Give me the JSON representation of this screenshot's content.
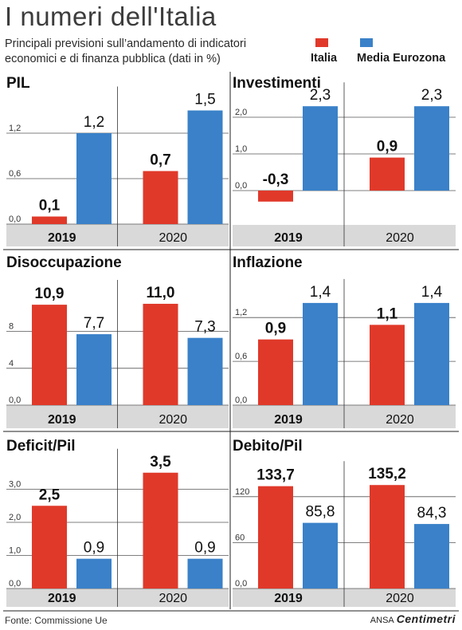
{
  "title": "I numeri dell'Italia",
  "subtitle": "Principali previsioni sull’andamento di indicatori economici e di finanza pubblica (dati in %)",
  "legend": [
    {
      "label": "Italia",
      "color": "#e0392a"
    },
    {
      "label": "Media Eurozona",
      "color": "#3a81c9"
    }
  ],
  "colors": {
    "italia": "#e0392a",
    "eurozona": "#3a81c9",
    "axis_band": "#d9d9d9"
  },
  "chart_data": [
    {
      "type": "bar",
      "title": "PIL",
      "categories": [
        "2019",
        "2020"
      ],
      "series": [
        {
          "name": "Italia",
          "values": [
            0.1,
            0.7
          ]
        },
        {
          "name": "Media Eurozona",
          "values": [
            1.2,
            1.5
          ]
        }
      ],
      "value_labels": [
        [
          "0,1",
          "0,7"
        ],
        [
          "1,2",
          "1,5"
        ]
      ],
      "yticks": [
        0,
        0.6,
        1.2
      ],
      "ytick_labels": [
        "0,0",
        "0,6",
        "1,2"
      ],
      "ylim": [
        0,
        1.5
      ]
    },
    {
      "type": "bar",
      "title": "Investimenti",
      "categories": [
        "2019",
        "2020"
      ],
      "series": [
        {
          "name": "Italia",
          "values": [
            -0.3,
            0.9
          ]
        },
        {
          "name": "Media Eurozona",
          "values": [
            2.3,
            2.3
          ]
        }
      ],
      "value_labels": [
        [
          "-0,3",
          "0,9"
        ],
        [
          "2,3",
          "2,3"
        ]
      ],
      "yticks": [
        0,
        1,
        2
      ],
      "ytick_labels": [
        "0,0",
        "1,0",
        "2,0"
      ],
      "ylim": [
        -0.5,
        2.3
      ]
    },
    {
      "type": "bar",
      "title": "Disoccupazione",
      "categories": [
        "2019",
        "2020"
      ],
      "series": [
        {
          "name": "Italia",
          "values": [
            10.9,
            11.0
          ]
        },
        {
          "name": "Media Eurozona",
          "values": [
            7.7,
            7.3
          ]
        }
      ],
      "value_labels": [
        [
          "10,9",
          "11,0"
        ],
        [
          "7,7",
          "7,3"
        ]
      ],
      "yticks": [
        0,
        4,
        8
      ],
      "ytick_labels": [
        "0,0",
        "4",
        "8"
      ],
      "ylim": [
        0,
        11
      ]
    },
    {
      "type": "bar",
      "title": "Inflazione",
      "categories": [
        "2019",
        "2020"
      ],
      "series": [
        {
          "name": "Italia",
          "values": [
            0.9,
            1.1
          ]
        },
        {
          "name": "Media Eurozona",
          "values": [
            1.4,
            1.4
          ]
        }
      ],
      "value_labels": [
        [
          "0,9",
          "1,1"
        ],
        [
          "1,4",
          "1,4"
        ]
      ],
      "yticks": [
        0,
        0.6,
        1.2
      ],
      "ytick_labels": [
        "0,0",
        "0,6",
        "1,2"
      ],
      "ylim": [
        0,
        1.4
      ]
    },
    {
      "type": "bar",
      "title": "Deficit/Pil",
      "categories": [
        "2019",
        "2020"
      ],
      "series": [
        {
          "name": "Italia",
          "values": [
            2.5,
            3.5
          ]
        },
        {
          "name": "Media Eurozona",
          "values": [
            0.9,
            0.9
          ]
        }
      ],
      "value_labels": [
        [
          "2,5",
          "3,5"
        ],
        [
          "0,9",
          "0,9"
        ]
      ],
      "yticks": [
        0,
        1,
        2,
        3
      ],
      "ytick_labels": [
        "0,0",
        "1,0",
        "2,0",
        "3,0"
      ],
      "ylim": [
        0,
        3.5
      ]
    },
    {
      "type": "bar",
      "title": "Debito/Pil",
      "categories": [
        "2019",
        "2020"
      ],
      "series": [
        {
          "name": "Italia",
          "values": [
            133.7,
            135.2
          ]
        },
        {
          "name": "Media Eurozona",
          "values": [
            85.8,
            84.3
          ]
        }
      ],
      "value_labels": [
        [
          "133,7",
          "135,2"
        ],
        [
          "85,8",
          "84,3"
        ]
      ],
      "yticks": [
        0,
        60,
        120
      ],
      "ytick_labels": [
        "0,0",
        "60",
        "120"
      ],
      "ylim": [
        0,
        135.2
      ]
    }
  ],
  "footer": {
    "source": "Fonte: Commissione Ue",
    "agency": "ANSA",
    "brand": "Centimetri"
  }
}
